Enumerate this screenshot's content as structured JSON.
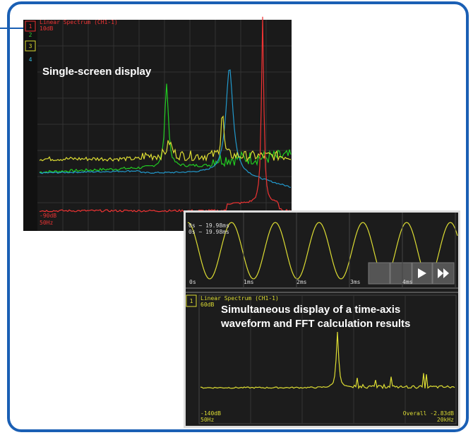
{
  "top_screen": {
    "channels": [
      "1",
      "2",
      "3",
      "4"
    ],
    "header": "Linear Spectrum (CH1-1)",
    "scale_top": "10dB",
    "caption": "Single-screen display",
    "scale_bottom": "-90dB",
    "freq_start": "50Hz"
  },
  "bottom_screen": {
    "time_ranges": [
      "0s ~ 19.98ms",
      "0s ~ 19.98ms"
    ],
    "time_ticks": [
      "0s",
      "1ms",
      "2ms",
      "3ms",
      "4ms"
    ],
    "channel": "1",
    "header": "Linear Spectrum (CH1-1)",
    "scale_top": "60dB",
    "caption_lines": [
      "Simultaneous display of a time-axis",
      "waveform and FFT calculation results"
    ],
    "scale_bottom": "-140dB",
    "freq_start": "50Hz",
    "overall": "Overall -2.83dB",
    "freq_end": "20kHz"
  }
}
